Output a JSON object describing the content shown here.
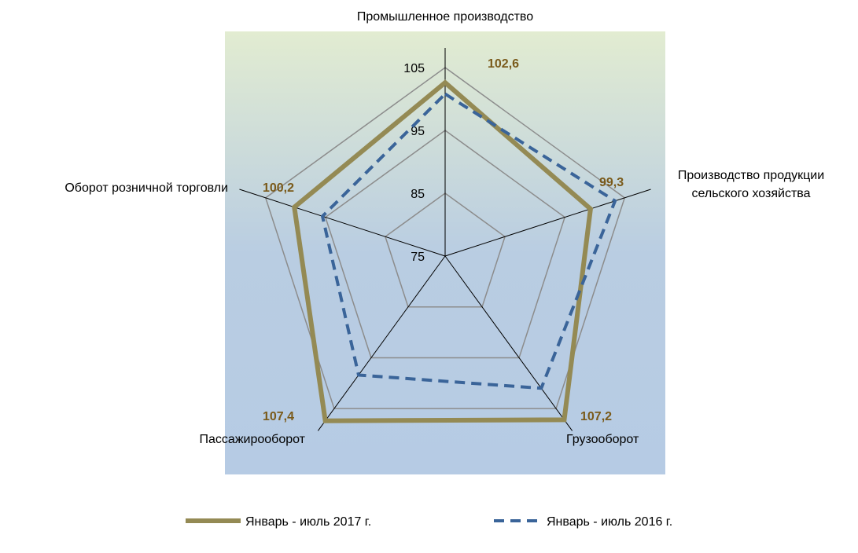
{
  "chart_data": {
    "type": "radar",
    "categories": [
      "Промышленное производство",
      "Производство продукции сельского хозяйства",
      "Грузооборот",
      "Пассажирооборот",
      "Оборот розничной торговли"
    ],
    "series": [
      {
        "name": "Январь - июль 2017 г.",
        "color": "#948a54",
        "values": [
          102.6,
          99.3,
          107.2,
          107.4,
          100.2
        ],
        "value_labels": [
          "102,6",
          "99,3",
          "107,2",
          "107,4",
          "100,2"
        ]
      },
      {
        "name": "Январь - июль 2016 г.",
        "color": "#3a6499",
        "values": [
          100.8,
          103.4,
          101,
          98.4,
          95.5
        ]
      }
    ],
    "ylim": [
      75,
      105
    ],
    "yticks": [
      75,
      85,
      95,
      105
    ],
    "grid": true
  }
}
